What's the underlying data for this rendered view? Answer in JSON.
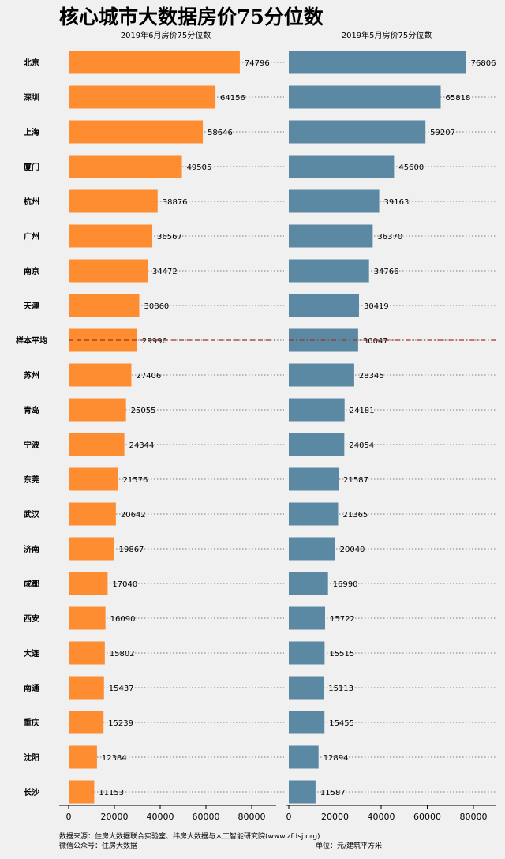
{
  "title": "核心城市大数据房价75分位数",
  "footer": {
    "source": "数据来源：住房大数据联合实验室、纬房大数据与人工智能研究院(www.zfdsj.org)",
    "wechat": "微信公众号：住房大数据",
    "unit": "单位：元/建筑平方米"
  },
  "colors": {
    "june": "#fe8c31",
    "may": "#5b89a3",
    "average_line": "#a0302c"
  },
  "chart_data": [
    {
      "type": "bar",
      "orientation": "horizontal",
      "title": "2019年6月房价75分位数",
      "categories": [
        "北京",
        "深圳",
        "上海",
        "厦门",
        "杭州",
        "广州",
        "南京",
        "天津",
        "样本平均",
        "苏州",
        "青岛",
        "宁波",
        "东莞",
        "武汉",
        "济南",
        "成都",
        "西安",
        "大连",
        "南通",
        "重庆",
        "沈阳",
        "长沙"
      ],
      "values": [
        74796,
        64156,
        58646,
        49505,
        38876,
        36567,
        34472,
        30860,
        29996,
        27406,
        25055,
        24344,
        21576,
        20642,
        19867,
        17040,
        16090,
        15802,
        15437,
        15239,
        12384,
        11153
      ],
      "xlim": [
        0,
        90000
      ],
      "xticks": [
        0,
        20000,
        40000,
        60000,
        80000
      ],
      "average_line": 29996
    },
    {
      "type": "bar",
      "orientation": "horizontal",
      "title": "2019年5月房价75分位数",
      "categories": [
        "北京",
        "深圳",
        "上海",
        "厦门",
        "杭州",
        "广州",
        "南京",
        "天津",
        "样本平均",
        "苏州",
        "青岛",
        "宁波",
        "东莞",
        "武汉",
        "济南",
        "成都",
        "西安",
        "大连",
        "南通",
        "重庆",
        "沈阳",
        "长沙"
      ],
      "values": [
        76806,
        65818,
        59207,
        45600,
        39163,
        36370,
        34766,
        30419,
        30047,
        28345,
        24181,
        24054,
        21587,
        21365,
        20040,
        16990,
        15722,
        15515,
        15113,
        15455,
        12894,
        11587
      ],
      "xlim": [
        0,
        90000
      ],
      "xticks": [
        0,
        20000,
        40000,
        60000,
        80000
      ],
      "average_line": 30047
    }
  ]
}
